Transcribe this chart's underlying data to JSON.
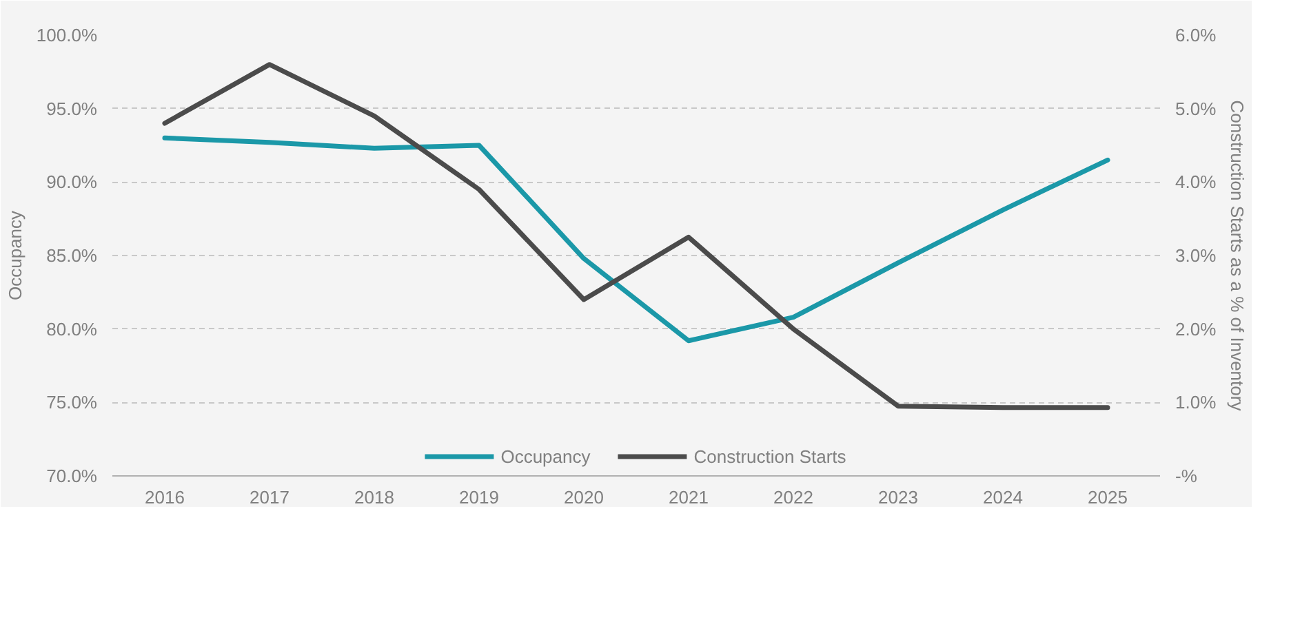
{
  "chart_data": {
    "type": "line",
    "ylabel": "Occupancy",
    "y2label": "Construction Starts as a % of Inventory",
    "categories": [
      "2016",
      "2017",
      "2018",
      "2019",
      "2020",
      "2021",
      "2022",
      "2023",
      "2024",
      "2025"
    ],
    "series": [
      {
        "name": "Occupancy",
        "color": "#1b98a8",
        "values": [
          93.0,
          92.7,
          92.3,
          92.5,
          84.8,
          79.2,
          80.8,
          84.5,
          88.1,
          91.5
        ]
      },
      {
        "name": "Construction Starts",
        "color": "#4b4b4b",
        "axis": "y2",
        "values": [
          4.8,
          5.6,
          4.9,
          3.9,
          2.4,
          3.25,
          2.0,
          0.95,
          0.93,
          0.93
        ]
      }
    ],
    "ylim": [
      70,
      100
    ],
    "yticks": [
      {
        "value": 70,
        "label": "70.0%"
      },
      {
        "value": 75,
        "label": "75.0%"
      },
      {
        "value": 80,
        "label": "80.0%"
      },
      {
        "value": 85,
        "label": "85.0%"
      },
      {
        "value": 90,
        "label": "90.0%"
      },
      {
        "value": 95,
        "label": "95.0%"
      },
      {
        "value": 100,
        "label": "100.0%"
      }
    ],
    "y2lim": [
      0,
      6
    ],
    "y2ticks": [
      {
        "value": 0,
        "label": "-%"
      },
      {
        "value": 1,
        "label": "1.0%"
      },
      {
        "value": 2,
        "label": "2.0%"
      },
      {
        "value": 3,
        "label": "3.0%"
      },
      {
        "value": 4,
        "label": "4.0%"
      },
      {
        "value": 5,
        "label": "5.0%"
      },
      {
        "value": 6,
        "label": "6.0%"
      }
    ],
    "grid": "y",
    "legend": "bottom",
    "line_style": "solid"
  }
}
